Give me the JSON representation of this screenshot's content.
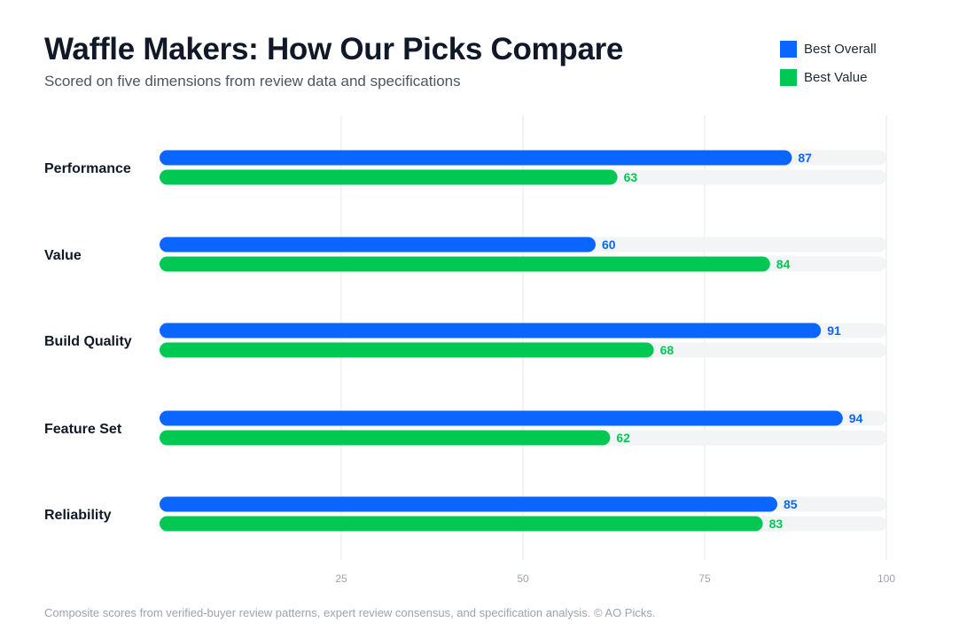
{
  "header": {
    "title": "Waffle Makers: How Our Picks Compare",
    "subtitle": "Scored on five dimensions from review data and specifications"
  },
  "legend": {
    "items": [
      {
        "label": "Best Overall",
        "color": "#0a66ff"
      },
      {
        "label": "Best Value",
        "color": "#00c853"
      }
    ]
  },
  "chart_data": {
    "type": "bar",
    "orientation": "horizontal",
    "categories": [
      "Performance",
      "Value",
      "Build Quality",
      "Feature Set",
      "Reliability"
    ],
    "series": [
      {
        "name": "Best Overall",
        "color": "#0a66ff",
        "values": [
          87,
          60,
          91,
          94,
          85
        ]
      },
      {
        "name": "Best Value",
        "color": "#00c853",
        "values": [
          63,
          84,
          68,
          62,
          83
        ]
      }
    ],
    "xlim": [
      0,
      100
    ],
    "xticks": [
      25,
      50,
      75,
      100
    ],
    "grid": true,
    "data_labels": true,
    "legend_position": "top-right",
    "track_color": "#f3f4f6"
  },
  "footer": {
    "note": "Composite scores from verified-buyer review patterns, expert review consensus, and specification analysis. © AO Picks."
  }
}
